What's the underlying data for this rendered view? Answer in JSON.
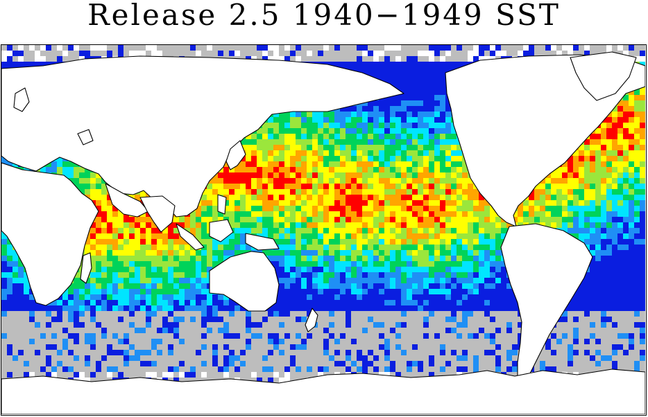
{
  "title": "Release 2.5 1940−1949 SST",
  "legend_colors": {
    "sparse": "#bdbdbd",
    "level1": "#0a1ee0",
    "level2": "#1f8ff5",
    "level3": "#00e5ff",
    "level4": "#00d35a",
    "level5": "#9be63c",
    "level6": "#ffff00",
    "level7": "#ffa500",
    "level8": "#ff0000",
    "land": "#ffffff",
    "coast": "#000000"
  }
}
